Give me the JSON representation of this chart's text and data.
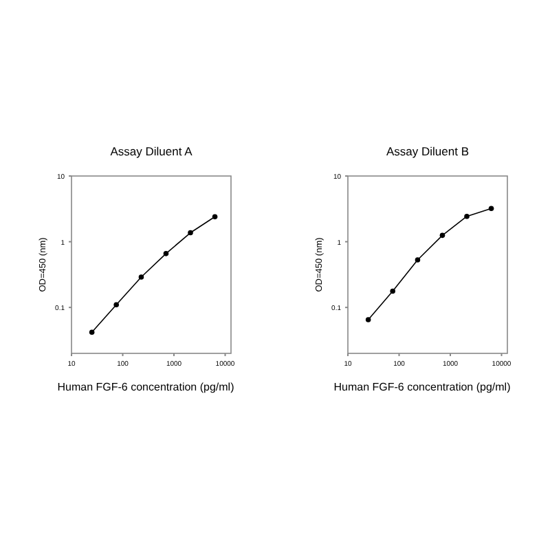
{
  "chart_data": [
    {
      "type": "line",
      "title": "Assay Diluent A",
      "xlabel": "Human FGF-6 concentration (pg/ml)",
      "ylabel": "OD=450 (nm)",
      "log": "xy",
      "marker": "circle",
      "x": [
        25,
        75,
        230,
        700,
        2100,
        6300
      ],
      "series": [
        {
          "color": "#000000",
          "values": [
            0.042,
            0.11,
            0.29,
            0.66,
            1.37,
            2.4
          ]
        }
      ],
      "xlim": [
        10,
        13000
      ],
      "xticks": [
        10,
        100,
        1000,
        10000
      ],
      "ylim": [
        0.02,
        10
      ],
      "yticks": [
        0.1,
        1,
        10
      ]
    },
    {
      "type": "line",
      "title": "Assay Diluent B",
      "xlabel": "Human FGF-6 concentration (pg/ml)",
      "ylabel": "OD=450 (nm)",
      "log": "xy",
      "marker": "circle",
      "x": [
        25,
        75,
        230,
        700,
        2100,
        6300
      ],
      "series": [
        {
          "color": "#000000",
          "values": [
            0.065,
            0.177,
            0.53,
            1.25,
            2.43,
            3.2
          ]
        }
      ],
      "xlim": [
        10,
        13000
      ],
      "xticks": [
        10,
        100,
        1000,
        10000
      ],
      "ylim": [
        0.02,
        10
      ],
      "yticks": [
        0.1,
        1,
        10
      ]
    }
  ]
}
